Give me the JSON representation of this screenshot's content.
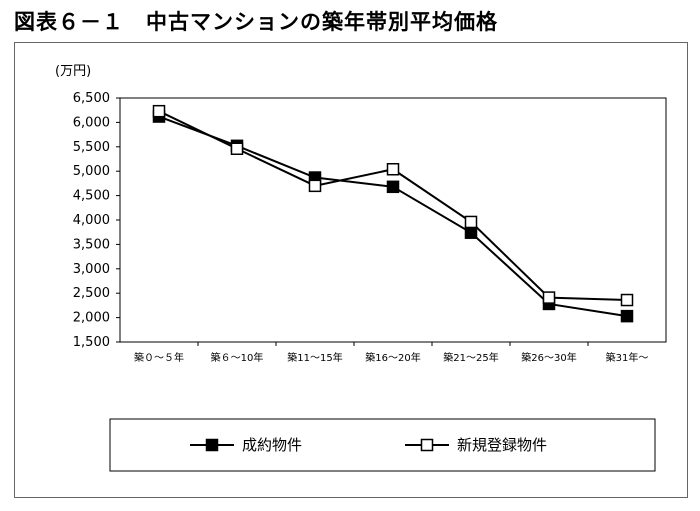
{
  "title": "図表６－１　中古マンションの築年帯別平均価格",
  "chart_data": {
    "type": "line",
    "title": "",
    "ylabel": "(万円)",
    "xlabel": "",
    "categories": [
      "築０～５年",
      "築６～10年",
      "築11～15年",
      "築16～20年",
      "築21～25年",
      "築26～30年",
      "築31年～"
    ],
    "ylim": [
      1500,
      6500
    ],
    "yticks": [
      1500,
      2000,
      2500,
      3000,
      3500,
      4000,
      4500,
      5000,
      5500,
      6000,
      6500
    ],
    "ytick_labels": [
      "1,500",
      "2,000",
      "2,500",
      "3,000",
      "3,500",
      "4,000",
      "4,500",
      "5,000",
      "5,500",
      "6,000",
      "6,500"
    ],
    "legend_position": "bottom",
    "grid": false,
    "series": [
      {
        "name": "成約物件",
        "values": [
          6120,
          5520,
          4870,
          4680,
          3740,
          2280,
          2030
        ],
        "color": "#000000",
        "marker": "filled-square"
      },
      {
        "name": "新規登録物件",
        "values": [
          6230,
          5460,
          4700,
          5040,
          3960,
          2410,
          2360
        ],
        "color": "#000000",
        "marker": "open-square"
      }
    ]
  }
}
